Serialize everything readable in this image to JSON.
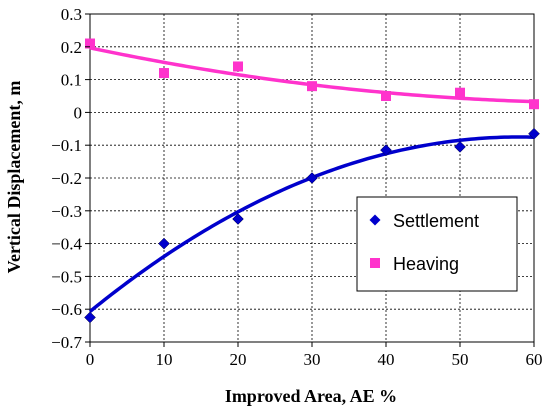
{
  "chart_data": {
    "type": "scatter",
    "xlabel": "Improved Area, AE %",
    "ylabel": "Vertical Displacement, m",
    "xlim": [
      0,
      60
    ],
    "ylim": [
      -0.7,
      0.3
    ],
    "xticks": [
      0,
      10,
      20,
      30,
      40,
      50,
      60
    ],
    "yticks": [
      0.3,
      0.2,
      0.1,
      0,
      -0.1,
      -0.2,
      -0.3,
      -0.4,
      -0.5,
      -0.6,
      -0.7
    ],
    "xtick_labels": [
      "0",
      "10",
      "20",
      "30",
      "40",
      "50",
      "60"
    ],
    "ytick_labels": [
      "0.3",
      "0.2",
      "0.1",
      "0",
      "−0.1",
      "−0.2",
      "−0.3",
      "−0.4",
      "−0.5",
      "−0.6",
      "−0.7"
    ],
    "grid": true,
    "legend_position": "center-right",
    "series": [
      {
        "name": "Settlement",
        "marker": "diamond",
        "color": "#0000cc",
        "x": [
          0,
          10,
          20,
          30,
          40,
          50,
          60
        ],
        "y": [
          -0.625,
          -0.4,
          -0.325,
          -0.2,
          -0.115,
          -0.105,
          -0.065
        ],
        "trendline": "polynomial order 2"
      },
      {
        "name": "Heaving",
        "marker": "square",
        "color": "#ff33cc",
        "x": [
          0,
          10,
          20,
          30,
          40,
          50,
          60
        ],
        "y": [
          0.21,
          0.12,
          0.14,
          0.08,
          0.05,
          0.06,
          0.025
        ],
        "trendline": "polynomial order 2"
      }
    ]
  }
}
